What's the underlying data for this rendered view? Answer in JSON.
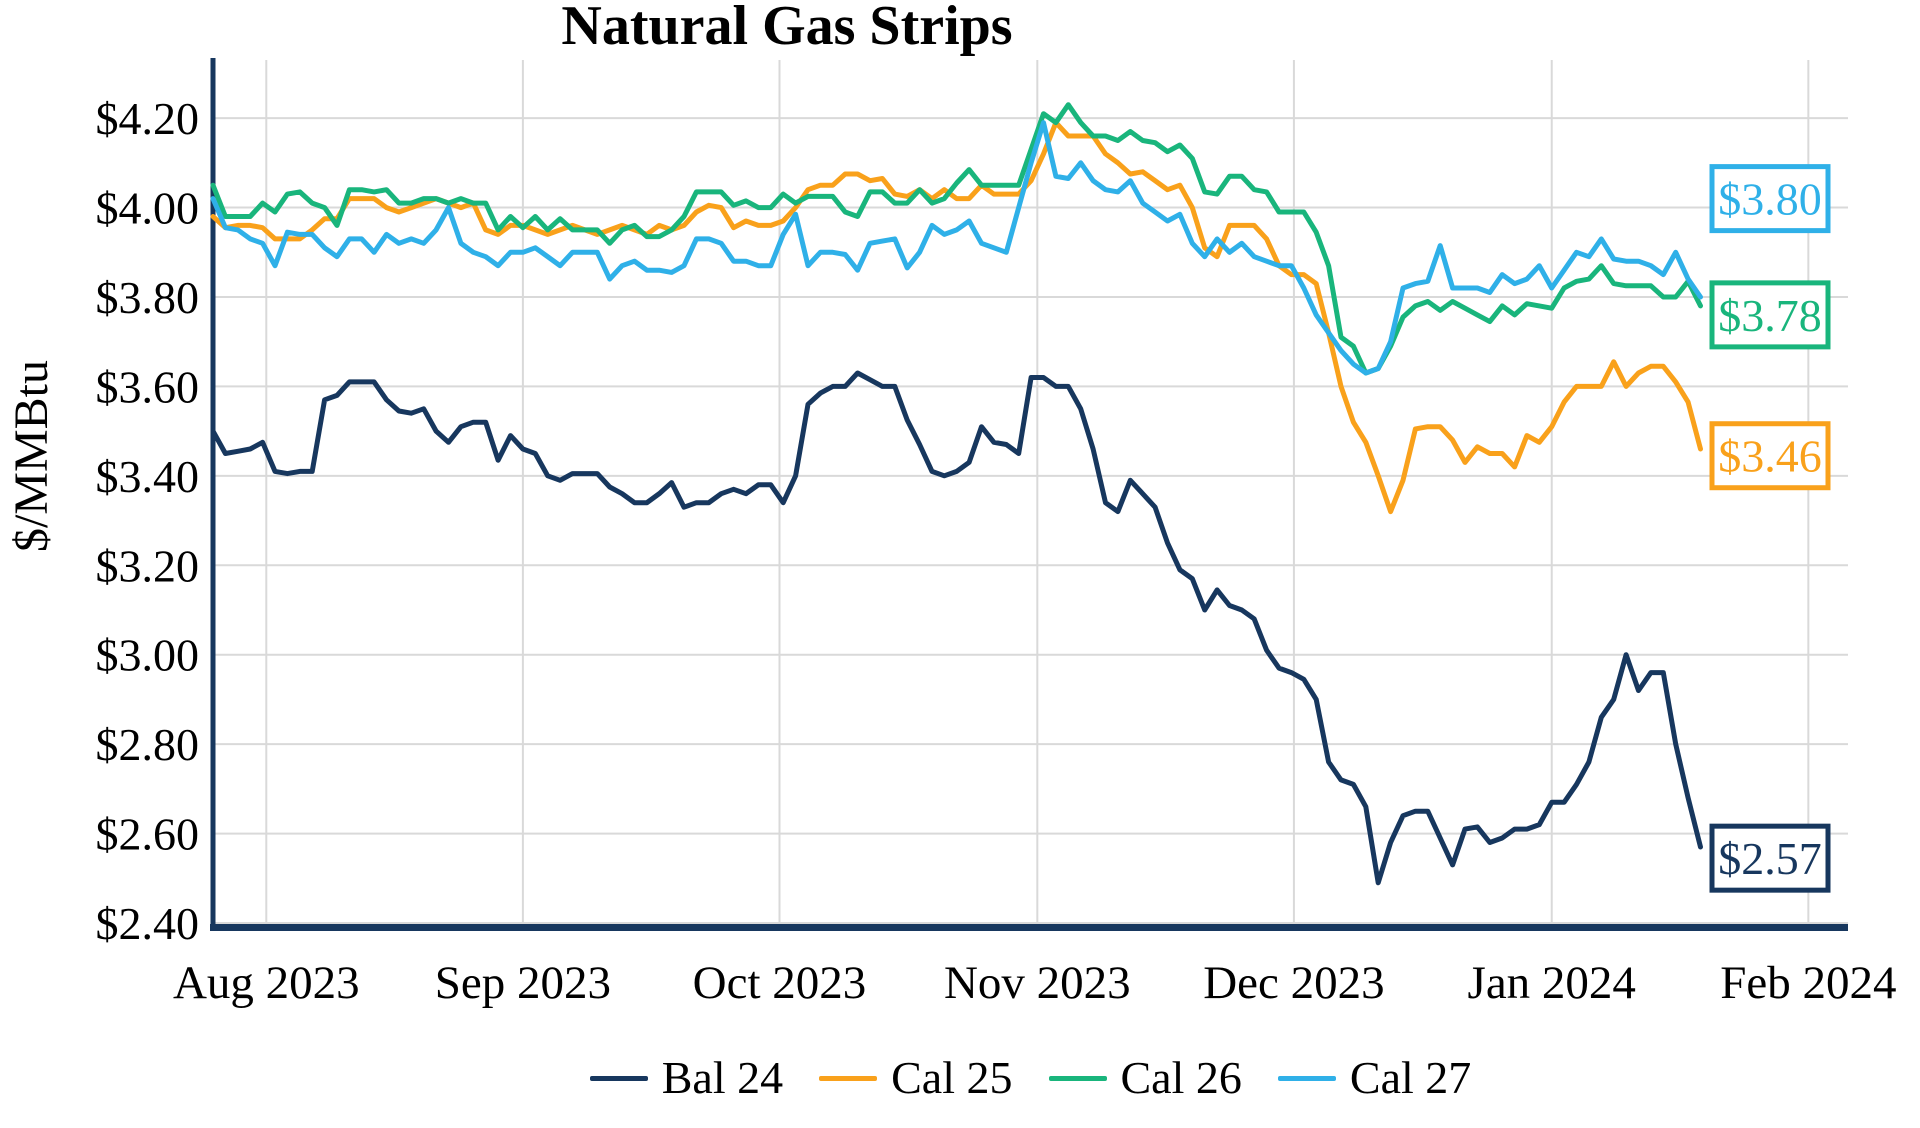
{
  "chart_data": {
    "type": "line",
    "title": "Natural Gas Strips",
    "ylabel": "$/MMBtu",
    "xlabel": "",
    "grid": true,
    "legend_position": "bottom",
    "ylim": [
      2.4,
      4.33
    ],
    "xlim": [
      0,
      131.9
    ],
    "y_ticks": [
      {
        "label": "$4.20",
        "value": 4.2
      },
      {
        "label": "$4.00",
        "value": 4.0
      },
      {
        "label": "$3.80",
        "value": 3.8
      },
      {
        "label": "$3.60",
        "value": 3.6
      },
      {
        "label": "$3.40",
        "value": 3.4
      },
      {
        "label": "$3.20",
        "value": 3.2
      },
      {
        "label": "$3.00",
        "value": 3.0
      },
      {
        "label": "$2.80",
        "value": 2.8
      },
      {
        "label": "$2.60",
        "value": 2.6
      },
      {
        "label": "$2.40",
        "value": 2.4
      }
    ],
    "x_ticks": [
      {
        "label": "Aug 2023",
        "pos": 4.3
      },
      {
        "label": "Sep 2023",
        "pos": 25.0
      },
      {
        "label": "Oct 2023",
        "pos": 45.7
      },
      {
        "label": "Nov 2023",
        "pos": 66.5
      },
      {
        "label": "Dec 2023",
        "pos": 87.2
      },
      {
        "label": "Jan 2024",
        "pos": 108.0
      },
      {
        "label": "Feb 2024",
        "pos": 128.7
      }
    ],
    "colors": {
      "axis": "#17375E",
      "gridline": "#D9D9D9",
      "bal24": "#17375E",
      "cal25": "#F9A11B",
      "cal26": "#19B57C",
      "cal27": "#2FB0E8"
    },
    "series": [
      {
        "name": "Bal 24",
        "color": "#17375E",
        "end_label": {
          "text": "$2.57",
          "anchor": 2.545
        },
        "values": [
          3.5,
          3.45,
          3.455,
          3.46,
          3.475,
          3.41,
          3.405,
          3.41,
          3.41,
          3.57,
          3.58,
          3.61,
          3.61,
          3.61,
          3.57,
          3.545,
          3.54,
          3.55,
          3.5,
          3.475,
          3.51,
          3.52,
          3.52,
          3.435,
          3.49,
          3.46,
          3.45,
          3.4,
          3.39,
          3.405,
          3.405,
          3.405,
          3.375,
          3.36,
          3.34,
          3.34,
          3.36,
          3.385,
          3.33,
          3.34,
          3.34,
          3.36,
          3.37,
          3.36,
          3.38,
          3.38,
          3.34,
          3.4,
          3.56,
          3.585,
          3.6,
          3.6,
          3.63,
          3.615,
          3.6,
          3.6,
          3.525,
          3.47,
          3.41,
          3.4,
          3.41,
          3.43,
          3.51,
          3.475,
          3.47,
          3.45,
          3.62,
          3.62,
          3.6,
          3.6,
          3.55,
          3.46,
          3.34,
          3.32,
          3.39,
          3.36,
          3.33,
          3.25,
          3.19,
          3.17,
          3.1,
          3.145,
          3.11,
          3.1,
          3.08,
          3.01,
          2.97,
          2.96,
          2.945,
          2.9,
          2.76,
          2.72,
          2.71,
          2.66,
          2.49,
          2.58,
          2.64,
          2.65,
          2.65,
          2.59,
          2.53,
          2.61,
          2.615,
          2.58,
          2.59,
          2.61,
          2.61,
          2.62,
          2.67,
          2.67,
          2.71,
          2.76,
          2.86,
          2.9,
          3.0,
          2.92,
          2.96,
          2.96,
          2.8,
          2.68,
          2.57
        ]
      },
      {
        "name": "Cal 25",
        "color": "#F9A11B",
        "end_label": {
          "text": "$3.46",
          "anchor": 3.445
        },
        "values": [
          3.98,
          3.955,
          3.96,
          3.96,
          3.955,
          3.93,
          3.93,
          3.93,
          3.95,
          3.975,
          3.975,
          4.02,
          4.02,
          4.02,
          4.0,
          3.99,
          4.0,
          4.01,
          4.02,
          4.01,
          4.0,
          4.01,
          3.95,
          3.94,
          3.96,
          3.96,
          3.95,
          3.94,
          3.95,
          3.96,
          3.95,
          3.94,
          3.95,
          3.96,
          3.95,
          3.94,
          3.96,
          3.95,
          3.96,
          3.99,
          4.005,
          4.0,
          3.955,
          3.97,
          3.96,
          3.96,
          3.97,
          4.0,
          4.04,
          4.05,
          4.05,
          4.075,
          4.075,
          4.06,
          4.065,
          4.03,
          4.025,
          4.04,
          4.02,
          4.04,
          4.02,
          4.02,
          4.05,
          4.03,
          4.03,
          4.03,
          4.06,
          4.12,
          4.19,
          4.16,
          4.16,
          4.16,
          4.12,
          4.1,
          4.075,
          4.08,
          4.06,
          4.04,
          4.05,
          4.0,
          3.91,
          3.89,
          3.96,
          3.96,
          3.96,
          3.93,
          3.87,
          3.85,
          3.85,
          3.83,
          3.72,
          3.6,
          3.52,
          3.475,
          3.4,
          3.32,
          3.39,
          3.505,
          3.51,
          3.51,
          3.48,
          3.43,
          3.465,
          3.45,
          3.45,
          3.42,
          3.49,
          3.475,
          3.51,
          3.565,
          3.6,
          3.6,
          3.6,
          3.655,
          3.6,
          3.63,
          3.645,
          3.645,
          3.61,
          3.565,
          3.46
        ]
      },
      {
        "name": "Cal 26",
        "color": "#19B57C",
        "end_label": {
          "text": "$3.78",
          "anchor": 3.76
        },
        "values": [
          4.05,
          3.98,
          3.98,
          3.98,
          4.01,
          3.99,
          4.03,
          4.035,
          4.01,
          4.0,
          3.96,
          4.04,
          4.04,
          4.035,
          4.04,
          4.01,
          4.01,
          4.02,
          4.02,
          4.01,
          4.02,
          4.01,
          4.01,
          3.95,
          3.98,
          3.955,
          3.98,
          3.95,
          3.975,
          3.95,
          3.95,
          3.95,
          3.92,
          3.95,
          3.96,
          3.935,
          3.935,
          3.95,
          3.98,
          4.035,
          4.035,
          4.035,
          4.005,
          4.015,
          4.0,
          4.0,
          4.03,
          4.01,
          4.025,
          4.025,
          4.025,
          3.99,
          3.98,
          4.035,
          4.035,
          4.01,
          4.01,
          4.04,
          4.01,
          4.02,
          4.055,
          4.085,
          4.05,
          4.05,
          4.05,
          4.05,
          4.13,
          4.21,
          4.19,
          4.23,
          4.19,
          4.16,
          4.16,
          4.15,
          4.17,
          4.15,
          4.145,
          4.125,
          4.14,
          4.11,
          4.035,
          4.03,
          4.07,
          4.07,
          4.04,
          4.035,
          3.99,
          3.99,
          3.99,
          3.945,
          3.87,
          3.71,
          3.69,
          3.63,
          3.64,
          3.69,
          3.755,
          3.78,
          3.79,
          3.77,
          3.79,
          3.775,
          3.76,
          3.745,
          3.78,
          3.76,
          3.785,
          3.78,
          3.775,
          3.82,
          3.835,
          3.84,
          3.87,
          3.83,
          3.825,
          3.825,
          3.825,
          3.8,
          3.8,
          3.835,
          3.78
        ]
      },
      {
        "name": "Cal 27",
        "color": "#2FB0E8",
        "end_label": {
          "text": "$3.80",
          "anchor": 4.02
        },
        "values": [
          4.02,
          3.955,
          3.95,
          3.93,
          3.92,
          3.87,
          3.945,
          3.94,
          3.94,
          3.91,
          3.89,
          3.93,
          3.93,
          3.9,
          3.94,
          3.92,
          3.93,
          3.92,
          3.95,
          4.0,
          3.92,
          3.9,
          3.89,
          3.87,
          3.9,
          3.9,
          3.91,
          3.89,
          3.87,
          3.9,
          3.9,
          3.9,
          3.84,
          3.87,
          3.88,
          3.86,
          3.86,
          3.855,
          3.87,
          3.93,
          3.93,
          3.92,
          3.88,
          3.88,
          3.87,
          3.87,
          3.94,
          3.985,
          3.87,
          3.9,
          3.9,
          3.895,
          3.86,
          3.92,
          3.925,
          3.93,
          3.865,
          3.9,
          3.96,
          3.94,
          3.95,
          3.97,
          3.92,
          3.91,
          3.9,
          4.0,
          4.1,
          4.19,
          4.07,
          4.065,
          4.1,
          4.06,
          4.04,
          4.035,
          4.06,
          4.01,
          3.99,
          3.97,
          3.985,
          3.92,
          3.89,
          3.93,
          3.9,
          3.92,
          3.89,
          3.88,
          3.87,
          3.87,
          3.82,
          3.76,
          3.72,
          3.68,
          3.65,
          3.63,
          3.64,
          3.7,
          3.82,
          3.83,
          3.835,
          3.915,
          3.82,
          3.82,
          3.82,
          3.81,
          3.85,
          3.83,
          3.84,
          3.87,
          3.82,
          3.86,
          3.9,
          3.89,
          3.93,
          3.885,
          3.88,
          3.88,
          3.87,
          3.85,
          3.9,
          3.84,
          3.8
        ]
      }
    ]
  }
}
